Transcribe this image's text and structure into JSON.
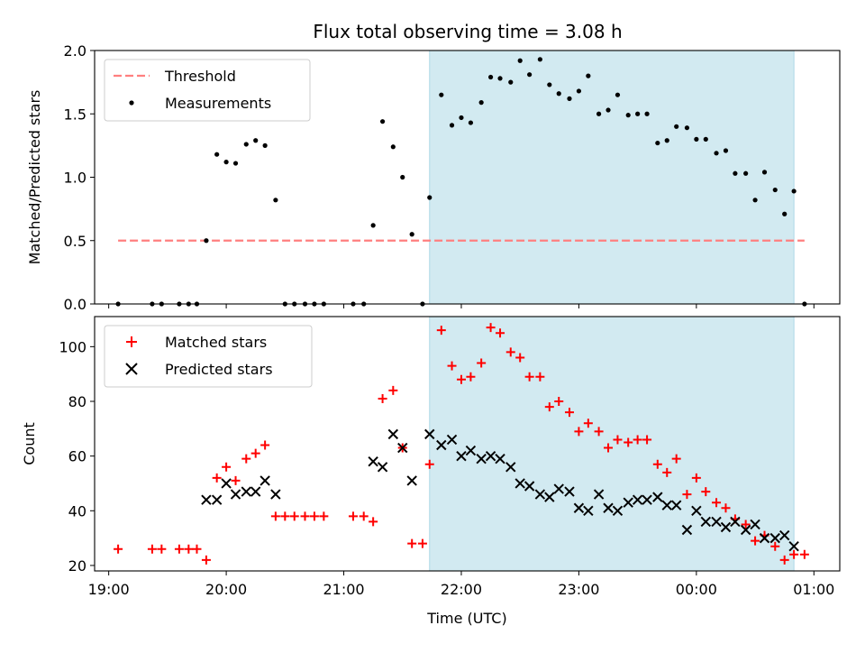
{
  "title": "Flux total observing time = 3.08 h",
  "chart_data": [
    {
      "type": "scatter",
      "ylabel": "Matched/Predicted stars",
      "xlabel": "",
      "xlim": [
        18.88,
        25.22
      ],
      "ylim": [
        0,
        2.0
      ],
      "yticks": [
        "0.0",
        "0.5",
        "1.0",
        "1.5",
        "2.0"
      ],
      "shaded_interval": [
        21.73,
        24.83
      ],
      "shade_color": "#add8e6",
      "threshold": {
        "name": "Threshold",
        "value": 0.5,
        "x_range": [
          19.08,
          24.92
        ],
        "color": "#ff7f7f"
      },
      "legend": {
        "placement": "top-left",
        "entries": [
          "Threshold",
          "Measurements"
        ]
      },
      "series": [
        {
          "name": "Measurements",
          "marker": "dot",
          "color": "#000000",
          "points": [
            [
              19.08,
              0
            ],
            [
              19.37,
              0
            ],
            [
              19.45,
              0
            ],
            [
              19.6,
              0
            ],
            [
              19.68,
              0
            ],
            [
              19.75,
              0
            ],
            [
              19.83,
              0.5
            ],
            [
              19.92,
              1.18
            ],
            [
              20.0,
              1.12
            ],
            [
              20.08,
              1.11
            ],
            [
              20.17,
              1.26
            ],
            [
              20.25,
              1.29
            ],
            [
              20.33,
              1.25
            ],
            [
              20.42,
              0.82
            ],
            [
              20.5,
              0
            ],
            [
              20.58,
              0
            ],
            [
              20.67,
              0
            ],
            [
              20.75,
              0
            ],
            [
              20.83,
              0
            ],
            [
              21.08,
              0
            ],
            [
              21.17,
              0
            ],
            [
              21.25,
              0.62
            ],
            [
              21.33,
              1.44
            ],
            [
              21.42,
              1.24
            ],
            [
              21.5,
              1.0
            ],
            [
              21.58,
              0.55
            ],
            [
              21.67,
              0
            ],
            [
              21.73,
              0.84
            ],
            [
              21.83,
              1.65
            ],
            [
              21.92,
              1.41
            ],
            [
              22.0,
              1.47
            ],
            [
              22.08,
              1.43
            ],
            [
              22.17,
              1.59
            ],
            [
              22.25,
              1.79
            ],
            [
              22.33,
              1.78
            ],
            [
              22.42,
              1.75
            ],
            [
              22.5,
              1.92
            ],
            [
              22.58,
              1.81
            ],
            [
              22.67,
              1.93
            ],
            [
              22.75,
              1.73
            ],
            [
              22.83,
              1.66
            ],
            [
              22.92,
              1.62
            ],
            [
              23.0,
              1.68
            ],
            [
              23.08,
              1.8
            ],
            [
              23.17,
              1.5
            ],
            [
              23.25,
              1.53
            ],
            [
              23.33,
              1.65
            ],
            [
              23.42,
              1.49
            ],
            [
              23.5,
              1.5
            ],
            [
              23.58,
              1.5
            ],
            [
              23.67,
              1.27
            ],
            [
              23.75,
              1.29
            ],
            [
              23.83,
              1.4
            ],
            [
              23.92,
              1.39
            ],
            [
              24.0,
              1.3
            ],
            [
              24.08,
              1.3
            ],
            [
              24.17,
              1.19
            ],
            [
              24.25,
              1.21
            ],
            [
              24.33,
              1.03
            ],
            [
              24.42,
              1.03
            ],
            [
              24.5,
              0.82
            ],
            [
              24.58,
              1.04
            ],
            [
              24.67,
              0.9
            ],
            [
              24.75,
              0.71
            ],
            [
              24.83,
              0.89
            ],
            [
              24.92,
              0
            ]
          ]
        }
      ]
    },
    {
      "type": "scatter",
      "ylabel": "Count",
      "xlabel": "Time (UTC)",
      "xlim": [
        18.88,
        25.22
      ],
      "ylim": [
        18,
        111
      ],
      "yticks": [
        "20",
        "40",
        "60",
        "80",
        "100"
      ],
      "xticks": [
        {
          "value": 19,
          "label": "19:00"
        },
        {
          "value": 20,
          "label": "20:00"
        },
        {
          "value": 21,
          "label": "21:00"
        },
        {
          "value": 22,
          "label": "22:00"
        },
        {
          "value": 23,
          "label": "23:00"
        },
        {
          "value": 24,
          "label": "00:00"
        },
        {
          "value": 25,
          "label": "01:00"
        }
      ],
      "shaded_interval": [
        21.73,
        24.83
      ],
      "shade_color": "#add8e6",
      "legend": {
        "placement": "top-left",
        "entries": [
          "Matched stars",
          "Predicted stars"
        ]
      },
      "series": [
        {
          "name": "Matched stars",
          "marker": "plus",
          "color": "#ff0000",
          "points": [
            [
              19.08,
              26
            ],
            [
              19.37,
              26
            ],
            [
              19.45,
              26
            ],
            [
              19.6,
              26
            ],
            [
              19.68,
              26
            ],
            [
              19.75,
              26
            ],
            [
              19.83,
              22
            ],
            [
              19.92,
              52
            ],
            [
              20.0,
              56
            ],
            [
              20.08,
              51
            ],
            [
              20.17,
              59
            ],
            [
              20.25,
              61
            ],
            [
              20.33,
              64
            ],
            [
              20.42,
              38
            ],
            [
              20.5,
              38
            ],
            [
              20.58,
              38
            ],
            [
              20.67,
              38
            ],
            [
              20.75,
              38
            ],
            [
              20.83,
              38
            ],
            [
              21.08,
              38
            ],
            [
              21.17,
              38
            ],
            [
              21.25,
              36
            ],
            [
              21.33,
              81
            ],
            [
              21.42,
              84
            ],
            [
              21.5,
              63
            ],
            [
              21.58,
              28
            ],
            [
              21.67,
              28
            ],
            [
              21.73,
              57
            ],
            [
              21.83,
              106
            ],
            [
              21.92,
              93
            ],
            [
              22.0,
              88
            ],
            [
              22.08,
              89
            ],
            [
              22.17,
              94
            ],
            [
              22.25,
              107
            ],
            [
              22.33,
              105
            ],
            [
              22.42,
              98
            ],
            [
              22.5,
              96
            ],
            [
              22.58,
              89
            ],
            [
              22.67,
              89
            ],
            [
              22.75,
              78
            ],
            [
              22.83,
              80
            ],
            [
              22.92,
              76
            ],
            [
              23.0,
              69
            ],
            [
              23.08,
              72
            ],
            [
              23.17,
              69
            ],
            [
              23.25,
              63
            ],
            [
              23.33,
              66
            ],
            [
              23.42,
              65
            ],
            [
              23.5,
              66
            ],
            [
              23.58,
              66
            ],
            [
              23.67,
              57
            ],
            [
              23.75,
              54
            ],
            [
              23.83,
              59
            ],
            [
              23.92,
              46
            ],
            [
              24.0,
              52
            ],
            [
              24.08,
              47
            ],
            [
              24.17,
              43
            ],
            [
              24.25,
              41
            ],
            [
              24.33,
              37
            ],
            [
              24.42,
              35
            ],
            [
              24.5,
              29
            ],
            [
              24.58,
              31
            ],
            [
              24.67,
              27
            ],
            [
              24.75,
              22
            ],
            [
              24.83,
              24
            ],
            [
              24.92,
              24
            ]
          ]
        },
        {
          "name": "Predicted stars",
          "marker": "x",
          "color": "#000000",
          "points": [
            [
              19.83,
              44
            ],
            [
              19.92,
              44
            ],
            [
              20.0,
              50
            ],
            [
              20.08,
              46
            ],
            [
              20.17,
              47
            ],
            [
              20.25,
              47
            ],
            [
              20.33,
              51
            ],
            [
              20.42,
              46
            ],
            [
              21.25,
              58
            ],
            [
              21.33,
              56
            ],
            [
              21.42,
              68
            ],
            [
              21.5,
              63
            ],
            [
              21.58,
              51
            ],
            [
              21.73,
              68
            ],
            [
              21.83,
              64
            ],
            [
              21.92,
              66
            ],
            [
              22.0,
              60
            ],
            [
              22.08,
              62
            ],
            [
              22.17,
              59
            ],
            [
              22.25,
              60
            ],
            [
              22.33,
              59
            ],
            [
              22.42,
              56
            ],
            [
              22.5,
              50
            ],
            [
              22.58,
              49
            ],
            [
              22.67,
              46
            ],
            [
              22.75,
              45
            ],
            [
              22.83,
              48
            ],
            [
              22.92,
              47
            ],
            [
              23.0,
              41
            ],
            [
              23.08,
              40
            ],
            [
              23.17,
              46
            ],
            [
              23.25,
              41
            ],
            [
              23.33,
              40
            ],
            [
              23.42,
              43
            ],
            [
              23.5,
              44
            ],
            [
              23.58,
              44
            ],
            [
              23.67,
              45
            ],
            [
              23.75,
              42
            ],
            [
              23.83,
              42
            ],
            [
              23.92,
              33
            ],
            [
              24.0,
              40
            ],
            [
              24.08,
              36
            ],
            [
              24.17,
              36
            ],
            [
              24.25,
              34
            ],
            [
              24.33,
              36
            ],
            [
              24.42,
              33
            ],
            [
              24.5,
              35
            ],
            [
              24.58,
              30
            ],
            [
              24.67,
              30
            ],
            [
              24.75,
              31
            ],
            [
              24.83,
              27
            ]
          ]
        }
      ]
    }
  ]
}
